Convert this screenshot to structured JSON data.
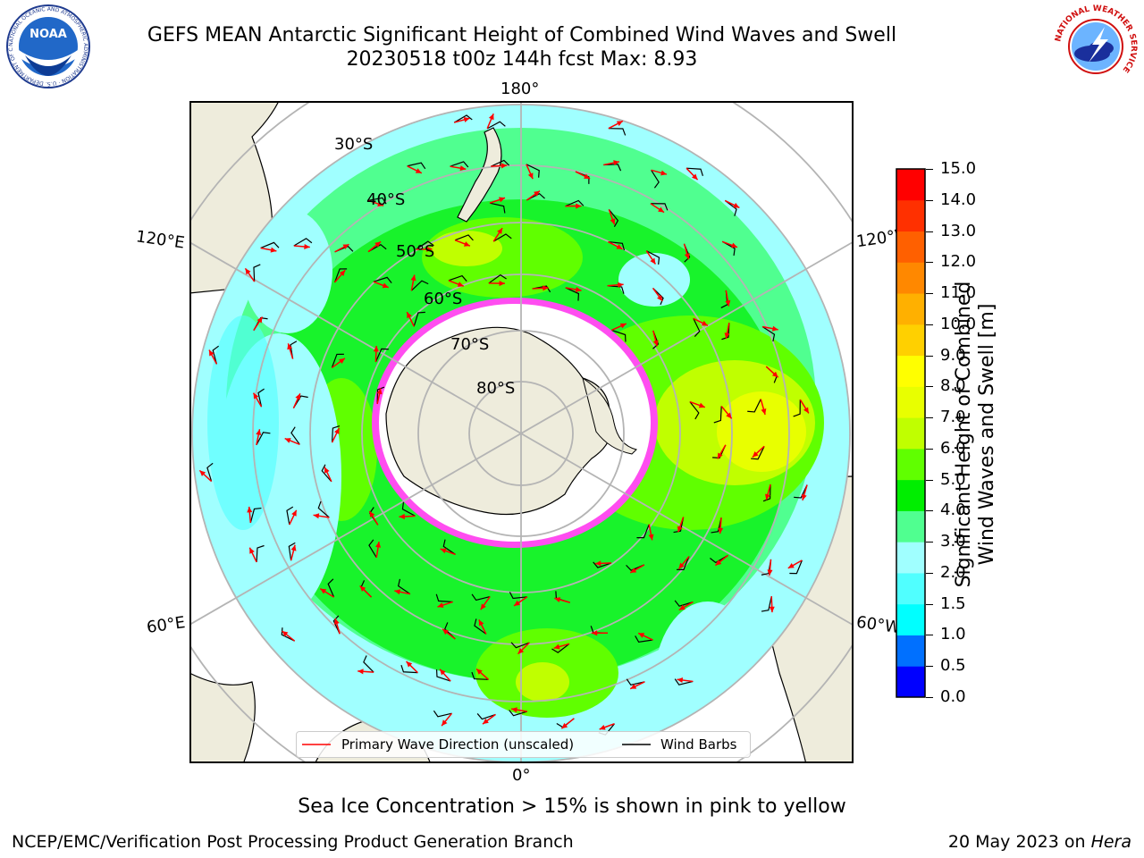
{
  "header": {
    "title_line1": "GEFS MEAN Antarctic Significant Height of Combined Wind Waves and Swell",
    "title_line2": "20230518 t00z 144h fcst   Max: 8.93"
  },
  "logos": {
    "noaa": {
      "text": "NOAA",
      "ring_text": "NATIONAL OCEANIC AND ATMOSPHERIC ADMINISTRATION · U.S. DEPARTMENT OF COMMERCE"
    },
    "nws": {
      "ring_text": "NATIONAL WEATHER SERVICE"
    }
  },
  "map": {
    "projection": "south-polar-stereographic",
    "longitude_labels": {
      "top": "180°",
      "bottom": "0°",
      "upper_left": "120°E",
      "upper_right": "120°W",
      "lower_left": "60°E",
      "lower_right": "60°W"
    },
    "latitude_labels": [
      "30°S",
      "40°S",
      "50°S",
      "60°S",
      "70°S",
      "80°S"
    ],
    "max_value": 8.93,
    "colors": {
      "land": "#eeecdc",
      "ice_edge": "#ff4df0",
      "ice_fill": "#ffffff",
      "graticule": "#b4b4b4",
      "arrow": "#ff0000",
      "barb": "#000000"
    }
  },
  "legend": {
    "primary_wave": "Primary Wave Direction (unscaled)",
    "wind_barbs": "Wind Barbs"
  },
  "colorbar": {
    "label_line1": "Significant Height of Combined",
    "label_line2": "Wind Waves and Swell [m]",
    "ticks": [
      "15.0",
      "14.0",
      "13.0",
      "12.0",
      "11.0",
      "10.0",
      "9.0",
      "8.0",
      "7.0",
      "6.0",
      "5.0",
      "4.0",
      "3.0",
      "2.0",
      "1.5",
      "1.0",
      "0.5",
      "0.0"
    ],
    "colors_bottom_to_top": [
      "#0000ff",
      "#0070ff",
      "#00ffff",
      "#50ffff",
      "#a0ffff",
      "#50ff90",
      "#00ee00",
      "#60ff00",
      "#c0ff00",
      "#e8ff00",
      "#ffff00",
      "#ffd000",
      "#ffb000",
      "#ff8800",
      "#ff6000",
      "#ff3000",
      "#ff0000"
    ]
  },
  "notes": {
    "sea_ice": "Sea Ice Concentration > 15% is shown in pink to yellow",
    "footer_left": "NCEP/EMC/Verification Post Processing Product Generation Branch",
    "footer_date": "20 May 2023 on ",
    "footer_host": "Hera"
  }
}
